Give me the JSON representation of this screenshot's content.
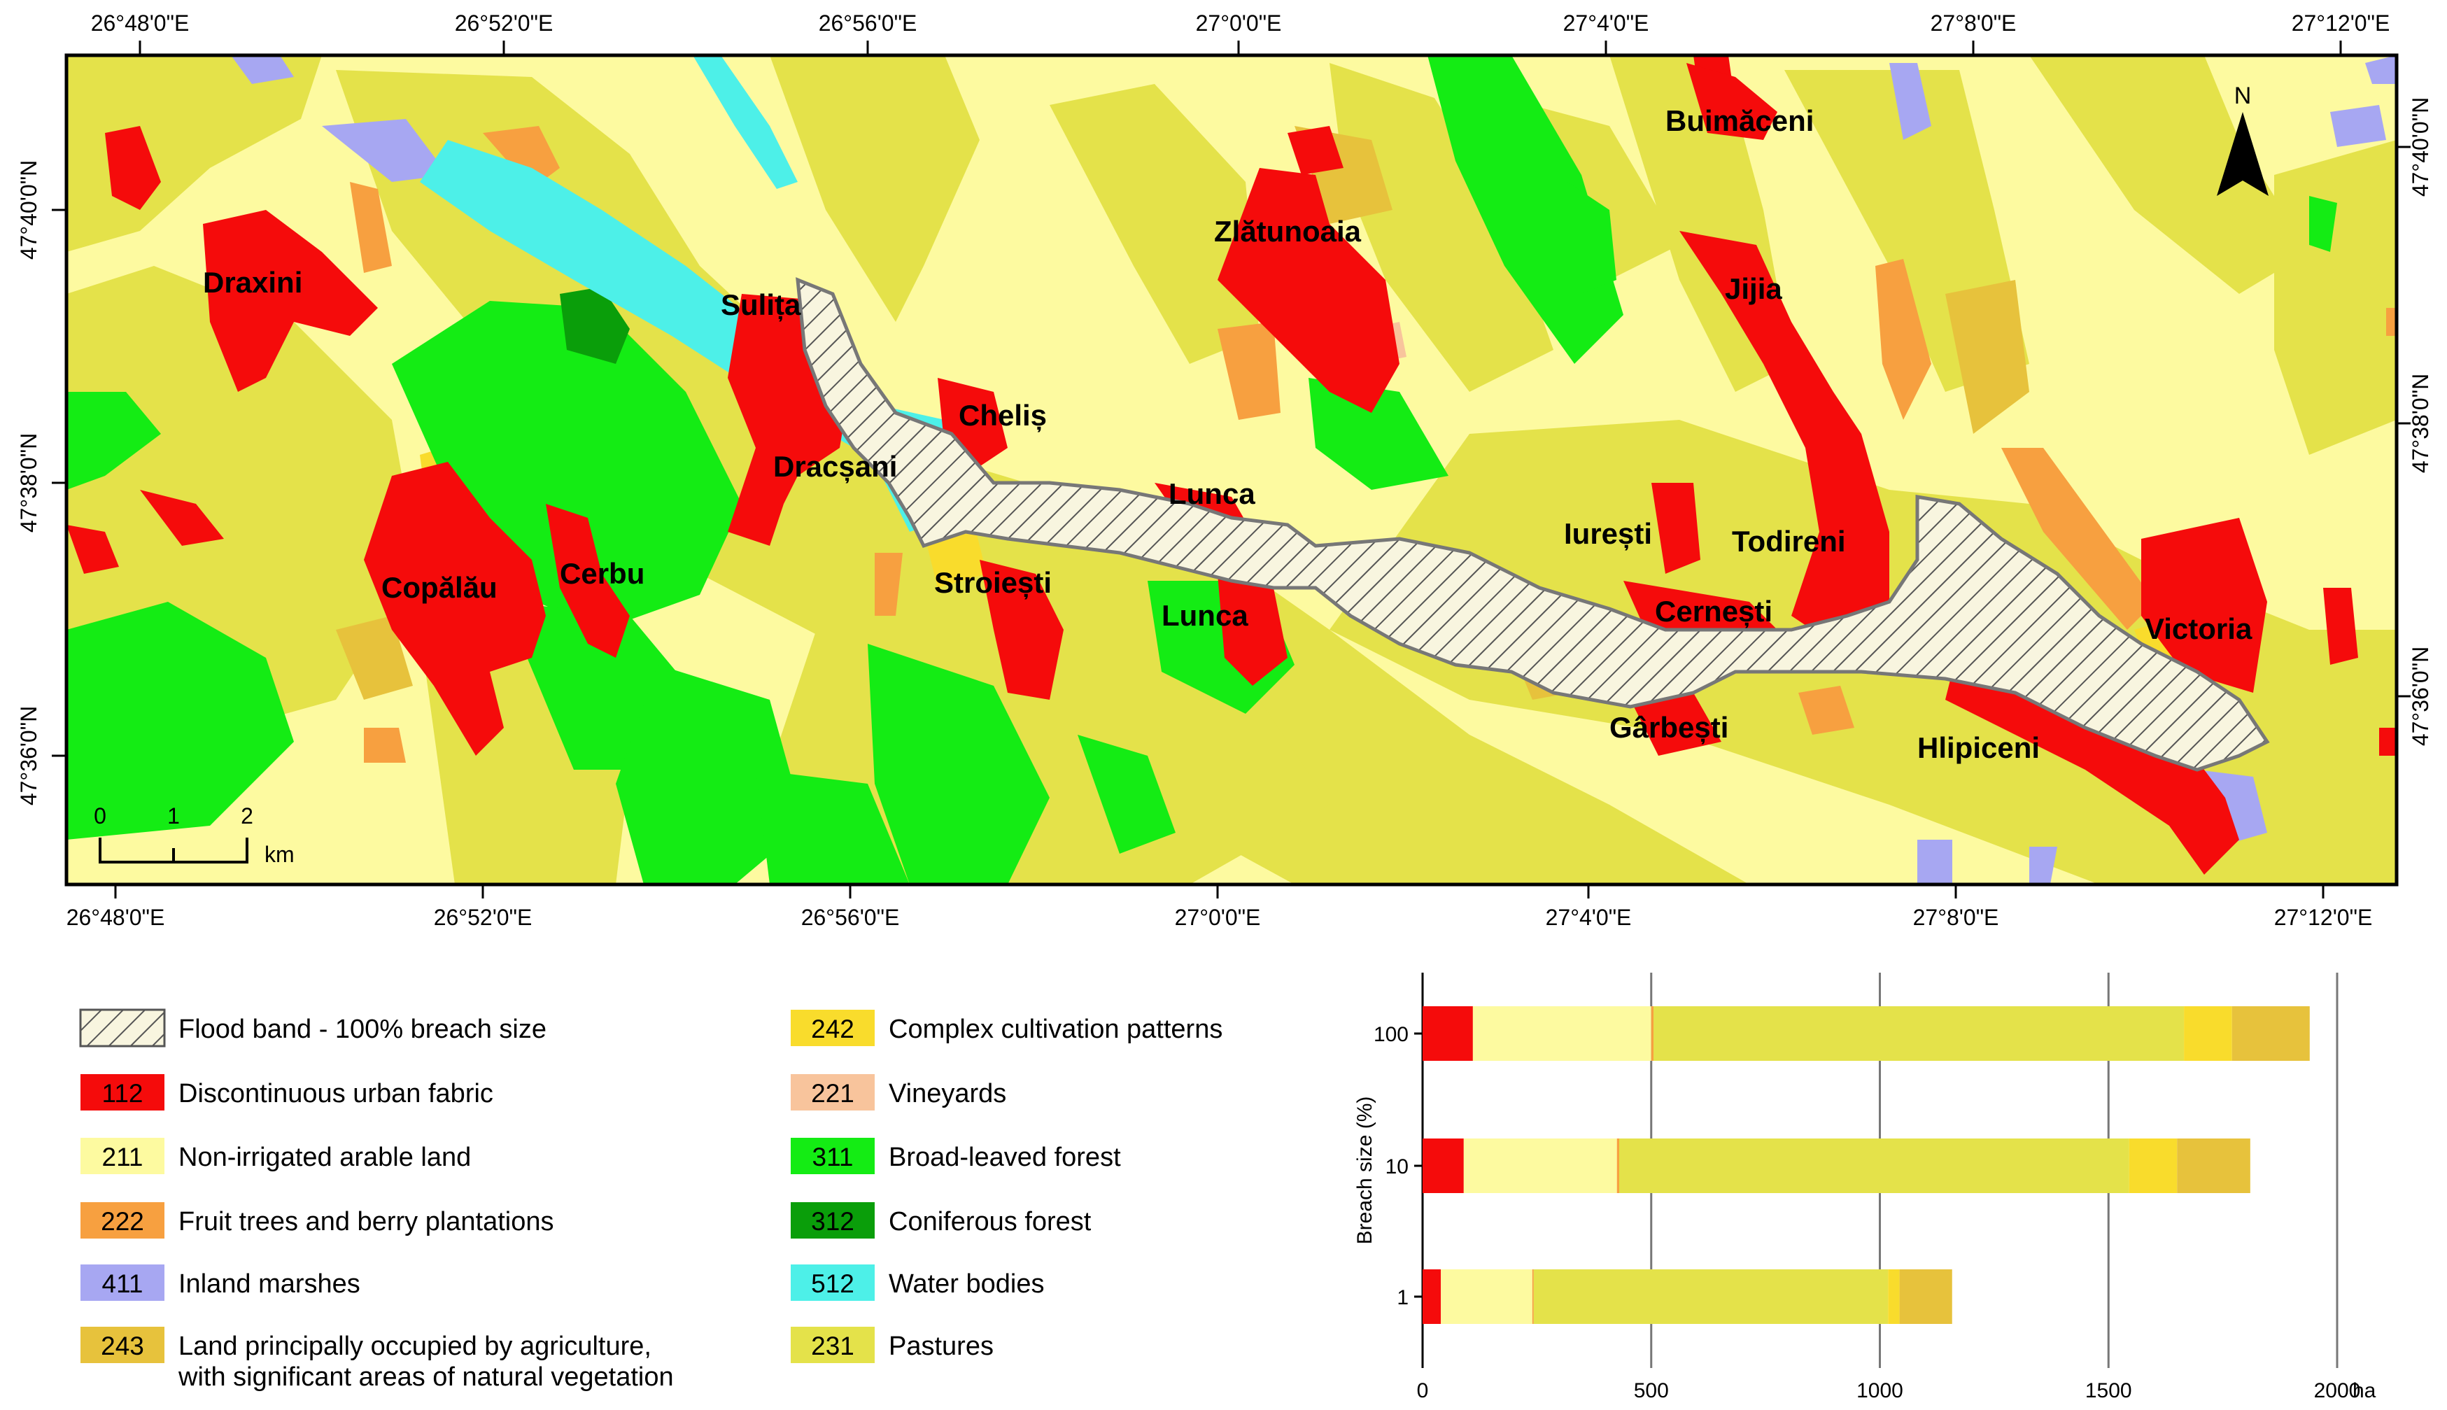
{
  "map": {
    "top_coords": [
      "26°48'0\"E",
      "26°52'0\"E",
      "26°56'0\"E",
      "27°0'0\"E",
      "27°4'0\"E",
      "27°8'0\"E",
      "27°12'0\"E"
    ],
    "bottom_coords": [
      "26°48'0\"E",
      "26°52'0\"E",
      "26°56'0\"E",
      "27°0'0\"E",
      "27°4'0\"E",
      "27°8'0\"E",
      "27°12'0\"E"
    ],
    "left_coords": [
      "47°40'0\"N",
      "47°38'0\"N",
      "47°36'0\"N"
    ],
    "right_coords": [
      "47°40'0\"N",
      "47°38'0\"N",
      "47°36'0\"N"
    ],
    "north_label": "N",
    "scale": {
      "ticks": [
        "0",
        "1",
        "2"
      ],
      "unit": "km"
    },
    "places": [
      "Buimăceni",
      "Zlătunoaia",
      "Draxini",
      "Sulița",
      "Jijia",
      "Cheliș",
      "Dracșani",
      "Lunca",
      "Iurești",
      "Todireni",
      "Copălău",
      "Cerbu",
      "Stroiești",
      "Lunca",
      "Cernești",
      "Victoria",
      "Gârbești",
      "Hlipiceni"
    ],
    "colors": {
      "c112": "#f50b0b",
      "c211": "#fdfaa0",
      "c222": "#f7a040",
      "c411": "#a7a7f2",
      "c243": "#e7c23c",
      "c242": "#f9dc2c",
      "c221": "#f8c49c",
      "c311": "#14ec14",
      "c312": "#0a9e0a",
      "c512": "#4df0e8",
      "c231": "#e4e24a"
    }
  },
  "legend": [
    {
      "code": "",
      "label": "Flood band - 100% breach size",
      "swatch": "hatch"
    },
    {
      "code": "112",
      "label": "Discontinuous urban fabric",
      "color": "#f50b0b"
    },
    {
      "code": "211",
      "label": "Non-irrigated arable land",
      "color": "#fdfaa0"
    },
    {
      "code": "222",
      "label": "Fruit trees and berry plantations",
      "color": "#f7a040"
    },
    {
      "code": "411",
      "label": "Inland marshes",
      "color": "#a7a7f2"
    },
    {
      "code": "243",
      "label": "Land principally occupied by agriculture,",
      "label2": "with significant areas of natural vegetation",
      "color": "#e7c23c"
    },
    {
      "code": "242",
      "label": "Complex cultivation patterns",
      "color": "#f9dc2c"
    },
    {
      "code": "221",
      "label": "Vineyards",
      "color": "#f8c49c"
    },
    {
      "code": "311",
      "label": "Broad-leaved forest",
      "color": "#14ec14"
    },
    {
      "code": "312",
      "label": "Coniferous forest",
      "color": "#0a9e0a"
    },
    {
      "code": "512",
      "label": "Water bodies",
      "color": "#4df0e8"
    },
    {
      "code": "231",
      "label": "Pastures",
      "color": "#e4e24a"
    }
  ],
  "chart_data": {
    "type": "bar",
    "orientation": "horizontal",
    "stacked": true,
    "categories": [
      "100",
      "10",
      "1"
    ],
    "ylabel": "Breach size (%)",
    "xlabel": "ha",
    "xlim": [
      0,
      2000
    ],
    "xticks": [
      "0",
      "500",
      "1000",
      "1500",
      "2000"
    ],
    "grid": true,
    "series": [
      {
        "code": "112",
        "color": "#f50b0b",
        "values": [
          110,
          90,
          40
        ]
      },
      {
        "code": "211",
        "color": "#fdfaa0",
        "values": [
          390,
          335,
          200
        ]
      },
      {
        "code": "222",
        "color": "#f7a040",
        "values": [
          5,
          5,
          3
        ]
      },
      {
        "code": "231",
        "color": "#e4e24a",
        "values": [
          1160,
          1115,
          775
        ]
      },
      {
        "code": "242",
        "color": "#f9dc2c",
        "values": [
          105,
          105,
          25
        ]
      },
      {
        "code": "243",
        "color": "#e7c23c",
        "values": [
          170,
          160,
          115
        ]
      }
    ]
  }
}
